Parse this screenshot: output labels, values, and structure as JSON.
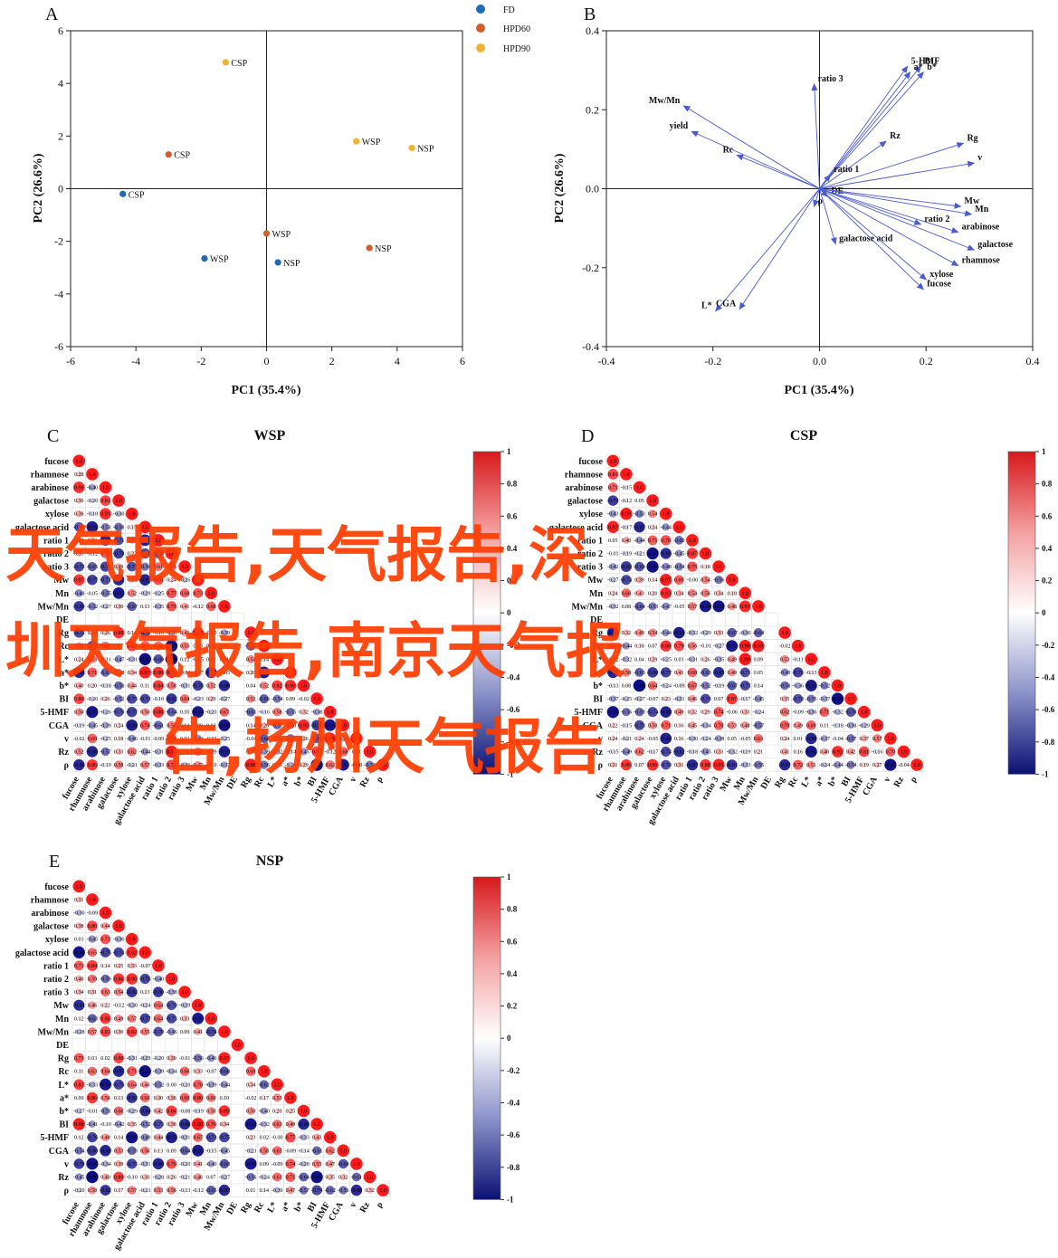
{
  "overlay_lines": [
    "天气报告,天气报告,深",
    "圳天气报告,南京天气报",
    "告,扬州天气报告"
  ],
  "panel_a": {
    "letter": "A",
    "xlabel": "PC1 (35.4%)",
    "ylabel": "PC2 (26.6%)",
    "legend": [
      {
        "name": "FD",
        "color": "#1f6ab9"
      },
      {
        "name": "HPD60",
        "color": "#d8592b"
      },
      {
        "name": "HPD90",
        "color": "#f2b233"
      }
    ]
  },
  "panel_b": {
    "letter": "B",
    "xlabel": "PC1 (35.4%)",
    "ylabel": "PC2 (26.6%)"
  },
  "panel_c": {
    "letter": "C",
    "title": "WSP"
  },
  "panel_d": {
    "letter": "D",
    "title": "CSP"
  },
  "panel_e": {
    "letter": "E",
    "title": "NSP"
  },
  "chart_data": [
    {
      "id": "A",
      "type": "scatter",
      "xlabel": "PC1 (35.4%)",
      "ylabel": "PC2 (26.6%)",
      "xlim": [
        -6,
        6
      ],
      "ylim": [
        -6,
        6
      ],
      "xticks": [
        "-6",
        "-4",
        "-2",
        "0",
        "2",
        "4",
        "6"
      ],
      "yticks": [
        "-6",
        "-4",
        "-2",
        "0",
        "2",
        "4",
        "6"
      ],
      "legend_position": "top-right",
      "series": [
        {
          "name": "FD",
          "color": "#1f6ab9",
          "points": [
            {
              "x": -4.4,
              "y": -0.2,
              "label": "CSP"
            },
            {
              "x": -1.9,
              "y": -2.65,
              "label": "WSP"
            },
            {
              "x": 0.35,
              "y": -2.8,
              "label": "NSP"
            }
          ]
        },
        {
          "name": "HPD60",
          "color": "#d8592b",
          "points": [
            {
              "x": -3.0,
              "y": 1.3,
              "label": "CSP"
            },
            {
              "x": 0.0,
              "y": -1.7,
              "label": "WSP"
            },
            {
              "x": 3.15,
              "y": -2.25,
              "label": "NSP"
            }
          ]
        },
        {
          "name": "HPD90",
          "color": "#f2b233",
          "points": [
            {
              "x": -1.25,
              "y": 4.8,
              "label": "CSP"
            },
            {
              "x": 2.75,
              "y": 1.8,
              "label": "WSP"
            },
            {
              "x": 4.45,
              "y": 1.55,
              "label": "NSP"
            }
          ]
        }
      ]
    },
    {
      "id": "B",
      "type": "biplot",
      "xlabel": "PC1 (35.4%)",
      "ylabel": "PC2 (26.6%)",
      "xlim": [
        -0.4,
        0.4
      ],
      "ylim": [
        -0.4,
        0.4
      ],
      "xticks": [
        "-0.4",
        "-0.2",
        "0.0",
        "0.2",
        "0.4"
      ],
      "yticks": [
        "-0.4",
        "-0.2",
        "0.0",
        "0.2",
        "0.4"
      ],
      "arrow_color": "#4a5bd4",
      "loadings": [
        {
          "name": "5-HMF",
          "x": 0.165,
          "y": 0.31
        },
        {
          "name": "BI",
          "x": 0.19,
          "y": 0.31
        },
        {
          "name": "a*",
          "x": 0.17,
          "y": 0.295
        },
        {
          "name": "b*",
          "x": 0.195,
          "y": 0.295
        },
        {
          "name": "ratio 3",
          "x": -0.01,
          "y": 0.265
        },
        {
          "name": "Mw/Mn",
          "x": -0.255,
          "y": 0.21
        },
        {
          "name": "yield",
          "x": -0.24,
          "y": 0.145
        },
        {
          "name": "Rc",
          "x": -0.155,
          "y": 0.085
        },
        {
          "name": "Rz",
          "x": 0.125,
          "y": 0.12
        },
        {
          "name": "Rg",
          "x": 0.27,
          "y": 0.115
        },
        {
          "name": "v",
          "x": 0.29,
          "y": 0.065
        },
        {
          "name": "ratio 1",
          "x": 0.02,
          "y": 0.035
        },
        {
          "name": "DE",
          "x": 0.015,
          "y": -0.02
        },
        {
          "name": "ρ",
          "x": -0.01,
          "y": -0.045
        },
        {
          "name": "Mw",
          "x": 0.265,
          "y": -0.045
        },
        {
          "name": "Mn",
          "x": 0.285,
          "y": -0.065
        },
        {
          "name": "ratio 2",
          "x": 0.19,
          "y": -0.09
        },
        {
          "name": "arabinose",
          "x": 0.26,
          "y": -0.11
        },
        {
          "name": "galactose",
          "x": 0.29,
          "y": -0.155
        },
        {
          "name": "galactose acid",
          "x": 0.03,
          "y": -0.14
        },
        {
          "name": "rhamnose",
          "x": 0.26,
          "y": -0.195
        },
        {
          "name": "xylose",
          "x": 0.2,
          "y": -0.23
        },
        {
          "name": "fucose",
          "x": 0.195,
          "y": -0.255
        },
        {
          "name": "L*",
          "x": -0.195,
          "y": -0.31
        },
        {
          "name": "CGA",
          "x": -0.15,
          "y": -0.305
        }
      ]
    },
    {
      "id": "C",
      "type": "heatmap",
      "title": "WSP",
      "variables": [
        "fucose",
        "rhamnose",
        "arabinose",
        "galactose",
        "xylose",
        "galactose acid",
        "ratio 1",
        "ratio 2",
        "ratio 3",
        "Mw",
        "Mn",
        "Mw/Mn",
        "DE",
        "Rg",
        "Rc",
        "L*",
        "a*",
        "b*",
        "BI",
        "5-HMF",
        "CGA",
        "v",
        "Rz",
        "ρ"
      ],
      "color_scale": {
        "min": -1,
        "max": 1,
        "ticks": [
          "1",
          "0.8",
          "0.6",
          "0.4",
          "0.2",
          "0",
          "-0.2",
          "-0.4",
          "-0.6",
          "-0.8",
          "-1"
        ]
      }
    },
    {
      "id": "D",
      "type": "heatmap",
      "title": "CSP",
      "variables": [
        "fucose",
        "rhamnose",
        "arabinose",
        "galactose",
        "xylose",
        "galactose acid",
        "ratio 1",
        "ratio 2",
        "ratio 3",
        "Mw",
        "Mn",
        "Mw/Mn",
        "DE",
        "Rg",
        "Rc",
        "L*",
        "a*",
        "b*",
        "BI",
        "5-HMF",
        "CGA",
        "v",
        "Rz",
        "ρ"
      ],
      "color_scale": {
        "min": -1,
        "max": 1,
        "ticks": [
          "1",
          "0.8",
          "0.6",
          "0.4",
          "0.2",
          "0",
          "-0.2",
          "-0.4",
          "-0.6",
          "-0.8",
          "-1"
        ]
      }
    },
    {
      "id": "E",
      "type": "heatmap",
      "title": "NSP",
      "variables": [
        "fucose",
        "rhamnose",
        "arabinose",
        "galactose",
        "xylose",
        "galactose acid",
        "ratio 1",
        "ratio 2",
        "ratio 3",
        "Mw",
        "Mn",
        "Mw/Mn",
        "DE",
        "Rg",
        "Rc",
        "L*",
        "a*",
        "b*",
        "BI",
        "5-HMF",
        "CGA",
        "v",
        "Rz",
        "ρ"
      ],
      "color_scale": {
        "min": -1,
        "max": 1,
        "ticks": [
          "1",
          "0.8",
          "0.6",
          "0.4",
          "0.2",
          "0",
          "-0.2",
          "-0.4",
          "-0.6",
          "-0.8",
          "-1"
        ]
      }
    }
  ]
}
